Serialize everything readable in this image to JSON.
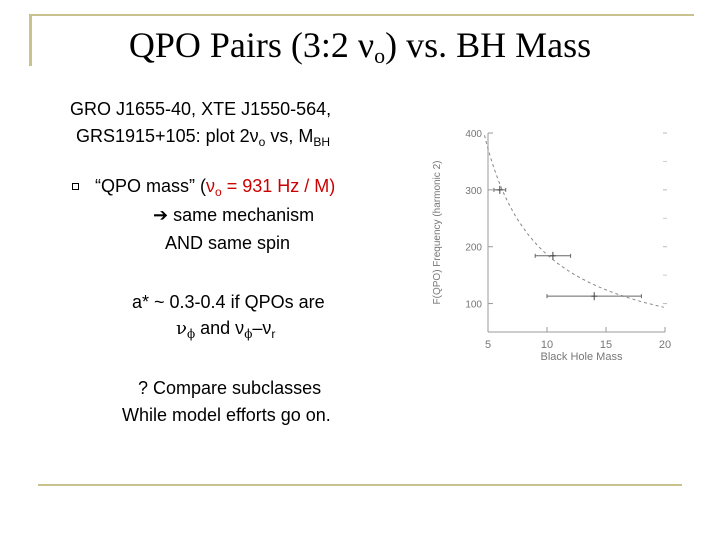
{
  "slide": {
    "title_main": "QPO Pairs (3:2 ν",
    "title_sub": "o",
    "title_end": ") vs. BH Mass",
    "intro_line1": "GRO J1655-40, XTE J1550-564,",
    "intro_line2_a": "GRS1915+105:  plot 2ν",
    "intro_line2_sub": "o",
    "intro_line2_b": " vs, M",
    "intro_line2_sub2": "BH",
    "bullet1_a": "“QPO mass” (",
    "bullet1_red_a": "ν",
    "bullet1_red_sub": "o",
    "bullet1_red_b": "  = 931 Hz / M)",
    "bullet1_line2": "➔ same mechanism",
    "bullet1_line3": "AND same spin",
    "spin_line1": "a* ~ 0.3-0.4 if QPOs are",
    "spin_line2_a": "ν",
    "spin_line2_b": "ϕ",
    "spin_line2_c": " and ν",
    "spin_line2_d": "ϕ",
    "spin_line2_e": "–ν",
    "spin_line2_f": "r",
    "closing_line1": "? Compare subclasses",
    "closing_line2": "While model efforts go on."
  },
  "chart_data": {
    "type": "scatter",
    "xlabel": "Black Hole Mass",
    "ylabel": "F(QPO) Frequency (harmonic 2)",
    "xlim": [
      5,
      20
    ],
    "ylim": [
      50,
      400
    ],
    "xticks": [
      "5",
      "10",
      "15",
      "20"
    ],
    "yticks": [
      "100",
      "200",
      "300",
      "400"
    ],
    "points": [
      {
        "x": 6.0,
        "y": 300,
        "xerr": 0.5
      },
      {
        "x": 10.5,
        "y": 184,
        "xerr": 1.5
      },
      {
        "x": 14.0,
        "y": 113,
        "xerr": 4.0
      }
    ],
    "curve": "y = 1862 / x"
  }
}
